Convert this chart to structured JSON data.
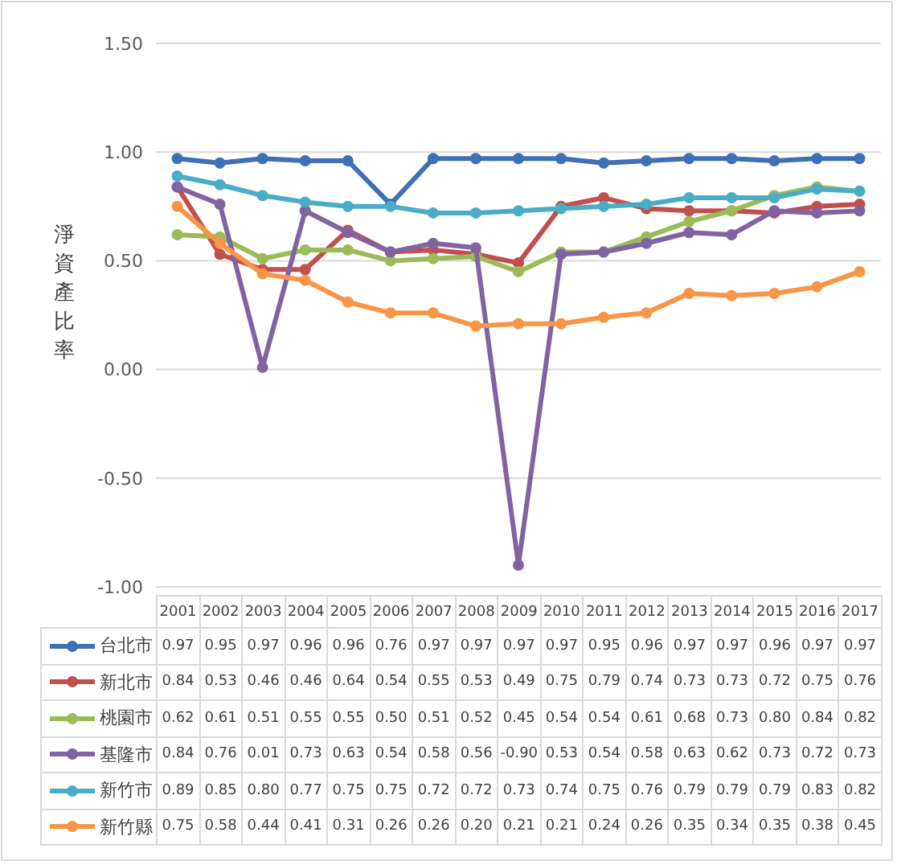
{
  "chart_data": {
    "type": "line",
    "ylabel": "淨資產比率",
    "categories": [
      "2001",
      "2002",
      "2003",
      "2004",
      "2005",
      "2006",
      "2007",
      "2008",
      "2009",
      "2010",
      "2011",
      "2012",
      "2013",
      "2014",
      "2015",
      "2016",
      "2017"
    ],
    "ylim": [
      -1,
      1.5
    ],
    "yticks": [
      {
        "value": -1,
        "label": "-1.00"
      },
      {
        "value": -0.5,
        "label": "-0.50"
      },
      {
        "value": 0,
        "label": "0.00"
      },
      {
        "value": 0.5,
        "label": "0.50"
      },
      {
        "value": 1,
        "label": "1.00"
      },
      {
        "value": 1.5,
        "label": "1.50"
      }
    ],
    "grid": "y",
    "marker": "circle",
    "legend": "bottom",
    "series": [
      {
        "name": "台北市",
        "color": "#3f6fb5",
        "values": [
          0.97,
          0.95,
          0.97,
          0.96,
          0.96,
          0.76,
          0.97,
          0.97,
          0.97,
          0.97,
          0.95,
          0.96,
          0.97,
          0.97,
          0.96,
          0.97,
          0.97
        ],
        "value_labels": [
          "0.97",
          "0.95",
          "0.97",
          "0.96",
          "0.96",
          "0.76",
          "0.97",
          "0.97",
          "0.97",
          "0.97",
          "0.95",
          "0.96",
          "0.97",
          "0.97",
          "0.96",
          "0.97",
          "0.97"
        ]
      },
      {
        "name": "新北市",
        "color": "#c0504d",
        "values": [
          0.84,
          0.53,
          0.46,
          0.46,
          0.64,
          0.54,
          0.55,
          0.53,
          0.49,
          0.75,
          0.79,
          0.74,
          0.73,
          0.73,
          0.72,
          0.75,
          0.76
        ],
        "value_labels": [
          "0.84",
          "0.53",
          "0.46",
          "0.46",
          "0.64",
          "0.54",
          "0.55",
          "0.53",
          "0.49",
          "0.75",
          "0.79",
          "0.74",
          "0.73",
          "0.73",
          "0.72",
          "0.75",
          "0.76"
        ]
      },
      {
        "name": "桃園市",
        "color": "#9bbb59",
        "values": [
          0.62,
          0.61,
          0.51,
          0.55,
          0.55,
          0.5,
          0.51,
          0.52,
          0.45,
          0.54,
          0.54,
          0.61,
          0.68,
          0.73,
          0.8,
          0.84,
          0.82
        ],
        "value_labels": [
          "0.62",
          "0.61",
          "0.51",
          "0.55",
          "0.55",
          "0.50",
          "0.51",
          "0.52",
          "0.45",
          "0.54",
          "0.54",
          "0.61",
          "0.68",
          "0.73",
          "0.80",
          "0.84",
          "0.82"
        ]
      },
      {
        "name": "基隆市",
        "color": "#8064a2",
        "values": [
          0.84,
          0.76,
          0.01,
          0.73,
          0.63,
          0.54,
          0.58,
          0.56,
          -0.9,
          0.53,
          0.54,
          0.58,
          0.63,
          0.62,
          0.73,
          0.72,
          0.73
        ],
        "value_labels": [
          "0.84",
          "0.76",
          "0.01",
          "0.73",
          "0.63",
          "0.54",
          "0.58",
          "0.56",
          "-0.90",
          "0.53",
          "0.54",
          "0.58",
          "0.63",
          "0.62",
          "0.73",
          "0.72",
          "0.73"
        ]
      },
      {
        "name": "新竹市",
        "color": "#4bacc6",
        "values": [
          0.89,
          0.85,
          0.8,
          0.77,
          0.75,
          0.75,
          0.72,
          0.72,
          0.73,
          0.74,
          0.75,
          0.76,
          0.79,
          0.79,
          0.79,
          0.83,
          0.82
        ],
        "value_labels": [
          "0.89",
          "0.85",
          "0.80",
          "0.77",
          "0.75",
          "0.75",
          "0.72",
          "0.72",
          "0.73",
          "0.74",
          "0.75",
          "0.76",
          "0.79",
          "0.79",
          "0.79",
          "0.83",
          "0.82"
        ]
      },
      {
        "name": "新竹縣",
        "color": "#f79646",
        "values": [
          0.75,
          0.58,
          0.44,
          0.41,
          0.31,
          0.26,
          0.26,
          0.2,
          0.21,
          0.21,
          0.24,
          0.26,
          0.35,
          0.34,
          0.35,
          0.38,
          0.45
        ],
        "value_labels": [
          "0.75",
          "0.58",
          "0.44",
          "0.41",
          "0.31",
          "0.26",
          "0.26",
          "0.20",
          "0.21",
          "0.21",
          "0.24",
          "0.26",
          "0.35",
          "0.34",
          "0.35",
          "0.38",
          "0.45"
        ]
      }
    ]
  }
}
